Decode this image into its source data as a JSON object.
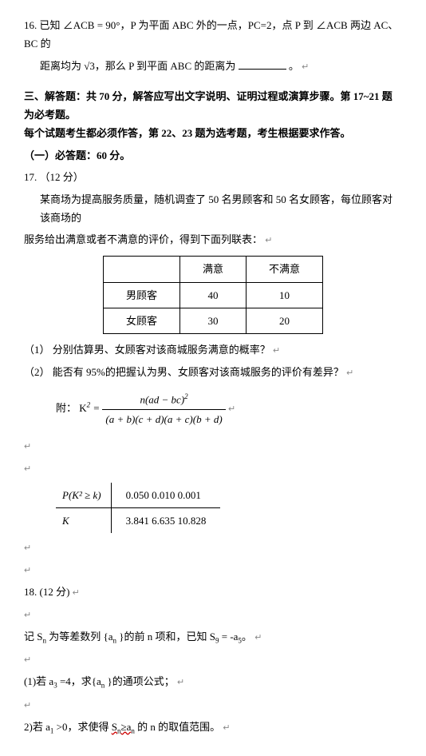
{
  "q16": {
    "line1": "16.  已知 ∠ACB = 90°，P 为平面 ABC 外的一点，PC=2，点 P 到  ∠ACB 两边 AC、BC 的",
    "line2": "距离均为 √3，那么 P 到平面 ABC 的距离为",
    "period": "。"
  },
  "sec3": {
    "title": "三、解答题：共 70 分，解答应写出文字说明、证明过程或演算步骤。第 17~21 题为必考题。",
    "title2": "每个试题考生都必须作答，第 22、23 题为选考题，考生根据要求作答。",
    "req": "（一）必答题：60 分。"
  },
  "q17": {
    "head": "17.  （12 分）",
    "p1": "某商场为提高服务质量，随机调查了 50 名男顾客和 50 名女顾客，每位顾客对该商场的",
    "p2": "服务给出满意或者不满意的评价，得到下面列联表：",
    "table": {
      "h1": "",
      "h2": "满意",
      "h3": "不满意",
      "r1c1": "男顾客",
      "r1c2": "40",
      "r1c3": "10",
      "r2c1": "女顾客",
      "r2c2": "30",
      "r2c3": "20"
    },
    "q1": "（1）   分别估算男、女顾客对该商城服务满意的概率？",
    "q2": "（2）   能否有 95%的把握认为男、女顾客对该商城服务的评价有差异？",
    "attach": "附：  K",
    "eq": " = ",
    "num": "n(ad − bc)",
    "den": "(a + b)(c + d)(a + c)(b + d)",
    "t2": {
      "h1": "P(K² ≥ k)",
      "h2": "0.050    0.010   0.001",
      "r1": "K",
      "r2": "3.841    6.635    10.828"
    }
  },
  "q18": {
    "head": "18.   (12 分)",
    "p1": "记 S",
    "p1b": " 为等差数列 {a",
    "p1c": "}的前 n 项和，已知 S",
    "p1d": " = -a",
    "q1": "(1)若 a",
    "q1b": "=4，求{a",
    "q1c": "}的通项公式；",
    "q2": "2)若 a",
    "q2b": " >0，求使得 ",
    "q2c": "S",
    "q2d": "≥a",
    "q2e": " 的 n 的取值范围。"
  },
  "sym": {
    "ret": "↵",
    "sq": "2",
    "n": "n",
    "nine": "9",
    "five": "5",
    "three": "3",
    "one": "1"
  }
}
